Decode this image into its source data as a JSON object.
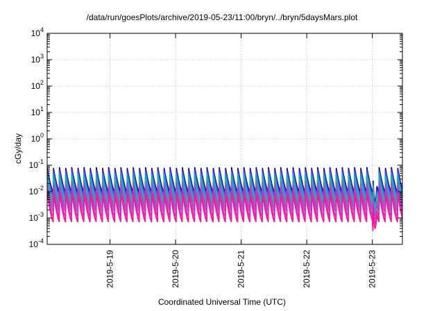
{
  "chart_data": {
    "type": "line",
    "title": "/data/run/goesPlots/archive/2019-05-23/11:00/bryn/../bryn/5daysMars.plot",
    "xlabel": "Coordinated Universal Time (UTC)",
    "ylabel": "cGy/day",
    "y_scale": "log",
    "ylim": [
      0.0001,
      10000
    ],
    "y_ticks": [
      {
        "base": "10",
        "exp": "-4"
      },
      {
        "base": "10",
        "exp": "-3"
      },
      {
        "base": "10",
        "exp": "-2"
      },
      {
        "base": "10",
        "exp": "-1"
      },
      {
        "base": "10",
        "exp": "0"
      },
      {
        "base": "10",
        "exp": "1"
      },
      {
        "base": "10",
        "exp": "2"
      },
      {
        "base": "10",
        "exp": "3"
      },
      {
        "base": "10",
        "exp": "4"
      }
    ],
    "x_start": "2019-05-18T01:00",
    "x_end": "2019-05-23T11:00",
    "x_ticks": [
      {
        "value": "2019-05-19T00:00",
        "label": "2019-5-19"
      },
      {
        "value": "2019-05-20T00:00",
        "label": "2019-5-20"
      },
      {
        "value": "2019-05-21T00:00",
        "label": "2019-5-21"
      },
      {
        "value": "2019-05-22T00:00",
        "label": "2019-5-22"
      },
      {
        "value": "2019-05-23T00:00",
        "label": "2019-5-23"
      }
    ],
    "grid": true,
    "sawtooth_period_hours": 2.25,
    "dip": {
      "start": "2019-05-23T00:00",
      "end": "2019-05-23T02:00"
    },
    "series": [
      {
        "color": "#000080",
        "peak": 0.082,
        "trough": 0.0095
      },
      {
        "color": "#4b3bd6",
        "peak": 0.066,
        "trough": 0.0072
      },
      {
        "color": "#1e8fff",
        "peak": 0.052,
        "trough": 0.0055
      },
      {
        "color": "#00b8b8",
        "peak": 0.04,
        "trough": 0.0042
      },
      {
        "color": "#33b28c",
        "peak": 0.031,
        "trough": 0.0033
      },
      {
        "color": "#7b68c4",
        "peak": 0.024,
        "trough": 0.0024
      },
      {
        "color": "#a050c8",
        "peak": 0.018,
        "trough": 0.0017
      },
      {
        "color": "#cc33cc",
        "peak": 0.013,
        "trough": 0.0011
      },
      {
        "color": "#ff00ff",
        "peak": 0.0095,
        "trough": 0.00075
      },
      {
        "color": "#ff1493",
        "peak": 0.0085,
        "trough": 0.0007
      }
    ]
  }
}
